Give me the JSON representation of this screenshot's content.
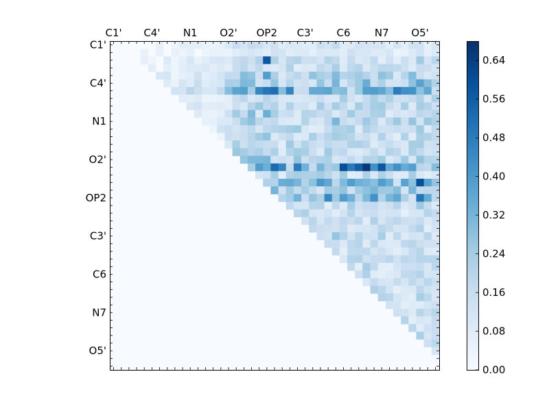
{
  "chart_data": {
    "type": "heatmap",
    "title": "",
    "xlabel": "",
    "ylabel": "",
    "n": 43,
    "axis_labels": [
      "C1'",
      "C4'",
      "N1",
      "O2'",
      "OP2",
      "C3'",
      "C6",
      "N7",
      "O5'"
    ],
    "label_indices": [
      0,
      5,
      10,
      15,
      20,
      25,
      30,
      35,
      40
    ],
    "colorbar": {
      "min": 0.0,
      "max": 0.68,
      "ticks": [
        0.0,
        0.08,
        0.16,
        0.24,
        0.32,
        0.4,
        0.48,
        0.56,
        0.64
      ],
      "tick_labels": [
        "0.00",
        "0.08",
        "0.16",
        "0.24",
        "0.32",
        "0.40",
        "0.48",
        "0.56",
        "0.64"
      ],
      "colormap": "Blues",
      "colors": [
        "#f7fbff",
        "#deebf7",
        "#c6dbef",
        "#9ecae1",
        "#6baed6",
        "#4292c6",
        "#2171b5",
        "#08519c",
        "#08306b"
      ]
    },
    "column_profile": [
      0.01,
      0.02,
      0.02,
      0.02,
      0.03,
      0.03,
      0.03,
      0.04,
      0.03,
      0.05,
      0.05,
      0.05,
      0.05,
      0.05,
      0.06,
      0.15,
      0.22,
      0.18,
      0.33,
      0.24,
      0.44,
      0.28,
      0.19,
      0.23,
      0.21,
      0.2,
      0.18,
      0.21,
      0.22,
      0.26,
      0.22,
      0.21,
      0.2,
      0.24,
      0.22,
      0.21,
      0.18,
      0.17,
      0.18,
      0.2,
      0.27,
      0.18,
      0.19
    ],
    "row_profile": [
      0.05,
      0.04,
      0.1,
      0.09,
      0.2,
      0.22,
      0.45,
      0.11,
      0.14,
      0.13,
      0.16,
      0.13,
      0.12,
      0.12,
      0.14,
      0.17,
      0.5,
      0.12,
      0.35,
      0.22,
      0.4,
      0.12,
      0.1,
      0.09,
      0.09,
      0.12,
      0.09,
      0.09,
      0.1,
      0.1,
      0.1,
      0.1,
      0.1,
      0.1,
      0.1,
      0.1,
      0.1,
      0.1,
      0.1,
      0.1,
      0.1,
      0.1,
      0.1
    ],
    "highlights": [
      {
        "row": 16,
        "col": 33,
        "value": 0.66
      },
      {
        "row": 16,
        "col": 30,
        "value": 0.6
      },
      {
        "row": 16,
        "col": 32,
        "value": 0.56
      },
      {
        "row": 16,
        "col": 35,
        "value": 0.58
      },
      {
        "row": 18,
        "col": 40,
        "value": 0.6
      },
      {
        "row": 20,
        "col": 40,
        "value": 0.5
      },
      {
        "row": 2,
        "col": 20,
        "value": 0.58
      },
      {
        "row": 6,
        "col": 20,
        "value": 0.5
      },
      {
        "row": 6,
        "col": 37,
        "value": 0.48
      }
    ]
  }
}
